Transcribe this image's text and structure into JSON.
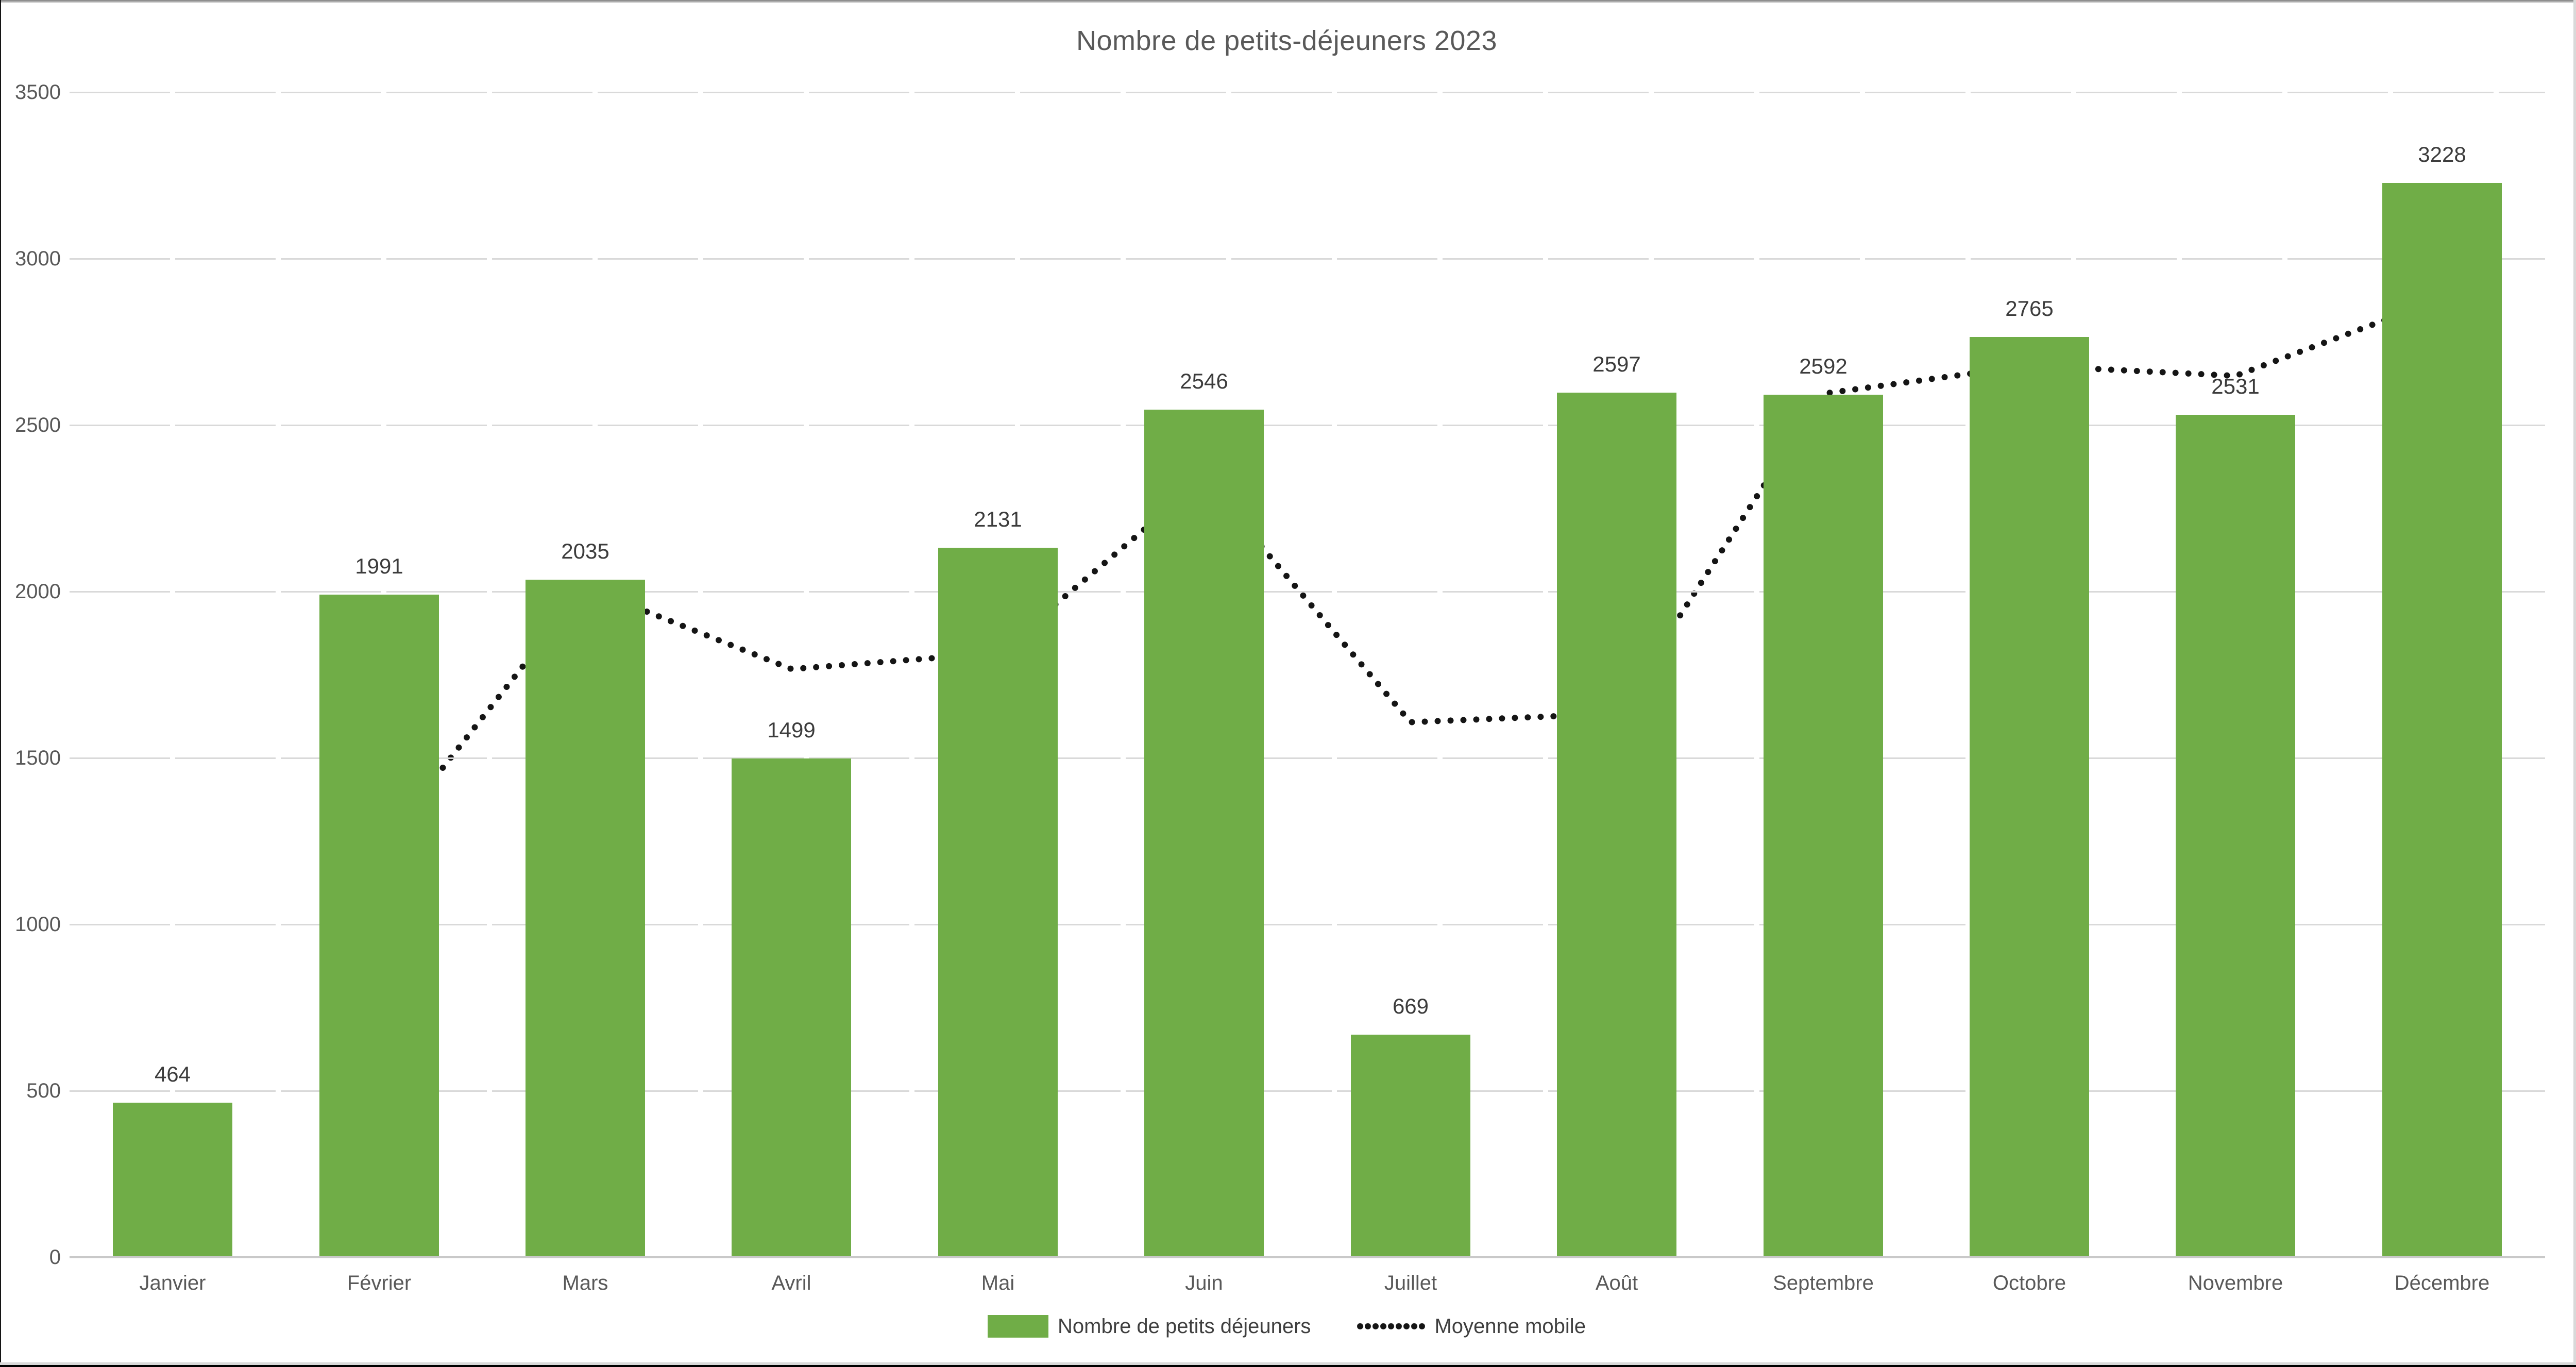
{
  "title": "Nombre de petits-déjeuners 2023",
  "chart_data": {
    "type": "bar",
    "title": "Nombre de petits-déjeuners 2023",
    "categories": [
      "Janvier",
      "Février",
      "Mars",
      "Avril",
      "Mai",
      "Juin",
      "Juillet",
      "Août",
      "Septembre",
      "Octobre",
      "Novembre",
      "Décembre"
    ],
    "series": [
      {
        "name": "Nombre de petits déjeuners",
        "type": "bar",
        "color": "#70AD47",
        "values": [
          464,
          1991,
          2035,
          1499,
          2131,
          2546,
          669,
          2597,
          2592,
          2765,
          2531,
          3228
        ],
        "data_labels": [
          "464",
          "1991",
          "2035",
          "1499",
          "2131",
          "2546",
          "669",
          "2597",
          "2592",
          "2765",
          "2531",
          "3228"
        ]
      },
      {
        "name": "Moyenne mobile",
        "type": "line",
        "line_style": "dotted",
        "color": "#151515",
        "values": [
          null,
          1227.5,
          2013,
          1767,
          1815,
          2338.5,
          1607.5,
          1633,
          2594.5,
          2678.5,
          2648,
          2879.5
        ]
      }
    ],
    "ylim": [
      0,
      3500
    ],
    "ytick_interval": 500,
    "ytick_labels": [
      "0",
      "500",
      "1000",
      "1500",
      "2000",
      "2500",
      "3000",
      "3500"
    ],
    "grid": true,
    "gridline_color": "#d9d9d9",
    "axis_text_color": "#595959",
    "legend_position": "bottom"
  },
  "legend": {
    "items": [
      {
        "label": "Nombre de petits déjeuners",
        "swatch": "bar"
      },
      {
        "label": "Moyenne mobile",
        "swatch": "dotted-line"
      }
    ]
  }
}
